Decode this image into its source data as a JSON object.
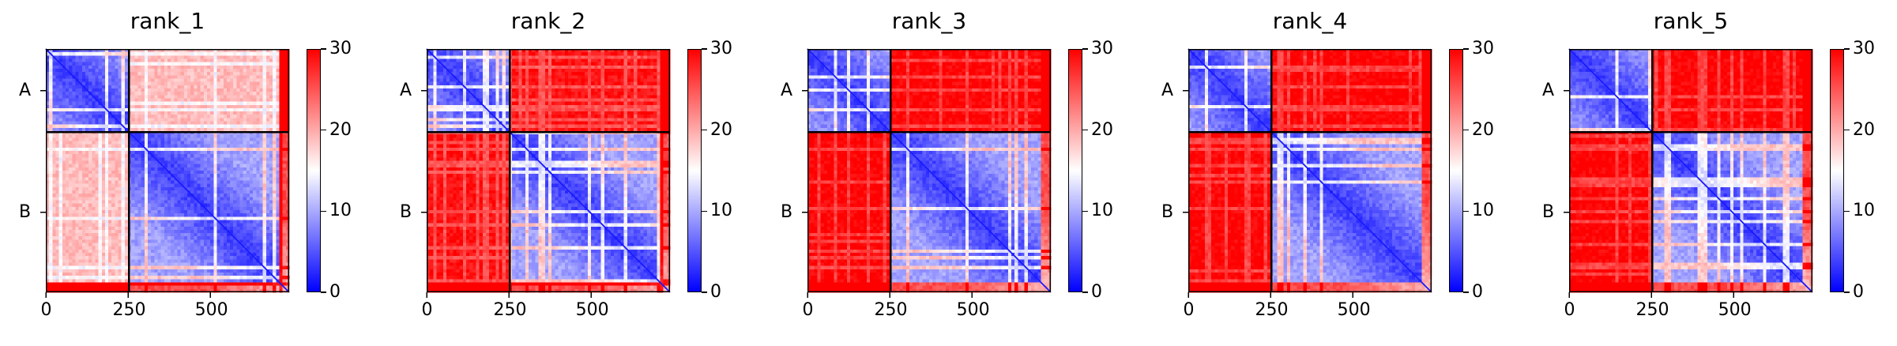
{
  "chart_data": [
    {
      "type": "heatmap",
      "title": "rank_1",
      "x_ticks": [
        0,
        250,
        500
      ],
      "y_tick_labels": [
        "A",
        "B"
      ],
      "colorbar_ticks": [
        0,
        10,
        20,
        30
      ],
      "vmin": 0,
      "vmax": 30,
      "total_length": 740,
      "chain_boundary": 253,
      "chains": [
        {
          "name": "A",
          "start": 0,
          "end": 253
        },
        {
          "name": "B",
          "start": 253,
          "end": 740
        }
      ],
      "inter_chain_level": 19
    },
    {
      "type": "heatmap",
      "title": "rank_2",
      "x_ticks": [
        0,
        250,
        500
      ],
      "y_tick_labels": [
        "A",
        "B"
      ],
      "colorbar_ticks": [
        0,
        10,
        20,
        30
      ],
      "vmin": 0,
      "vmax": 30,
      "total_length": 740,
      "chain_boundary": 253,
      "chains": [
        {
          "name": "A",
          "start": 0,
          "end": 253
        },
        {
          "name": "B",
          "start": 253,
          "end": 740
        }
      ],
      "inter_chain_level": 29
    },
    {
      "type": "heatmap",
      "title": "rank_3",
      "x_ticks": [
        0,
        250,
        500
      ],
      "y_tick_labels": [
        "A",
        "B"
      ],
      "colorbar_ticks": [
        0,
        10,
        20,
        30
      ],
      "vmin": 0,
      "vmax": 30,
      "total_length": 740,
      "chain_boundary": 253,
      "chains": [
        {
          "name": "A",
          "start": 0,
          "end": 253
        },
        {
          "name": "B",
          "start": 253,
          "end": 740
        }
      ],
      "inter_chain_level": 30
    },
    {
      "type": "heatmap",
      "title": "rank_4",
      "x_ticks": [
        0,
        250,
        500
      ],
      "y_tick_labels": [
        "A",
        "B"
      ],
      "colorbar_ticks": [
        0,
        10,
        20,
        30
      ],
      "vmin": 0,
      "vmax": 30,
      "total_length": 740,
      "chain_boundary": 253,
      "chains": [
        {
          "name": "A",
          "start": 0,
          "end": 253
        },
        {
          "name": "B",
          "start": 253,
          "end": 740
        }
      ],
      "inter_chain_level": 30
    },
    {
      "type": "heatmap",
      "title": "rank_5",
      "x_ticks": [
        0,
        250,
        500
      ],
      "y_tick_labels": [
        "A",
        "B"
      ],
      "colorbar_ticks": [
        0,
        10,
        20,
        30
      ],
      "vmin": 0,
      "vmax": 30,
      "total_length": 740,
      "chain_boundary": 253,
      "chains": [
        {
          "name": "A",
          "start": 0,
          "end": 253
        },
        {
          "name": "B",
          "start": 253,
          "end": 740
        }
      ],
      "inter_chain_level": 30
    }
  ],
  "colors": {
    "low": "#0000ff",
    "mid": "#ffffff",
    "high": "#ff0000"
  }
}
